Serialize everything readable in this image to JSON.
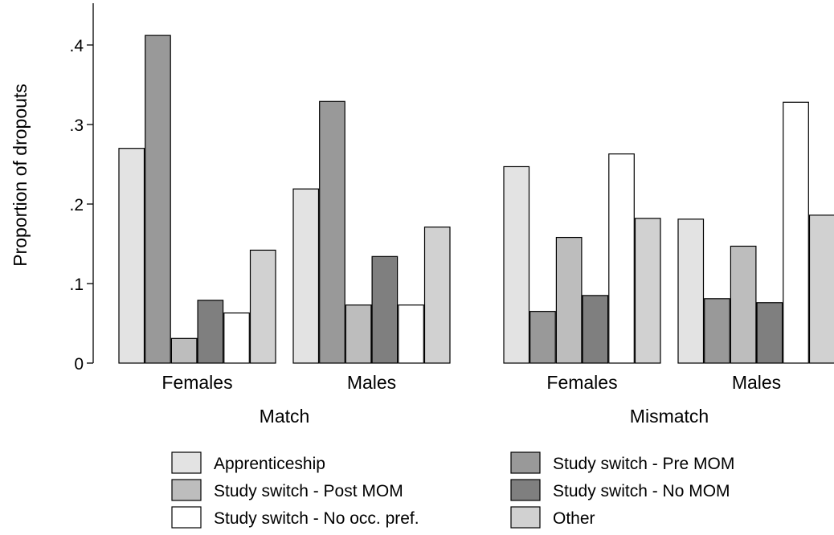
{
  "chart_data": {
    "type": "bar",
    "ylabel": "Proportion of dropouts",
    "ylim": [
      0,
      0.45
    ],
    "yticks": [
      0,
      0.1,
      0.2,
      0.3,
      0.4
    ],
    "ytick_labels": [
      "0",
      ".1",
      ".2",
      ".3",
      ".4"
    ],
    "grid": false,
    "legend_position": "bottom",
    "panels": [
      {
        "label": "Match",
        "groups": [
          {
            "label": "Females",
            "values": [
              0.27,
              0.412,
              0.031,
              0.079,
              0.063,
              0.142
            ]
          },
          {
            "label": "Males",
            "values": [
              0.219,
              0.329,
              0.073,
              0.134,
              0.073,
              0.171
            ]
          }
        ]
      },
      {
        "label": "Mismatch",
        "groups": [
          {
            "label": "Females",
            "values": [
              0.247,
              0.065,
              0.158,
              0.085,
              0.263,
              0.182
            ]
          },
          {
            "label": "Males",
            "values": [
              0.181,
              0.081,
              0.147,
              0.076,
              0.328,
              0.186
            ]
          }
        ]
      }
    ],
    "series": [
      {
        "name": "Apprenticeship",
        "color": "#e3e3e3"
      },
      {
        "name": "Study switch - Pre MOM",
        "color": "#999999"
      },
      {
        "name": "Study switch - Post MOM",
        "color": "#bdbdbd"
      },
      {
        "name": "Study switch - No MOM",
        "color": "#7f7f7f"
      },
      {
        "name": "Study switch - No occ. pref.",
        "color": "#ffffff"
      },
      {
        "name": "Other",
        "color": "#d1d1d1"
      }
    ],
    "legend_order": [
      0,
      1,
      2,
      3,
      4,
      5
    ]
  }
}
